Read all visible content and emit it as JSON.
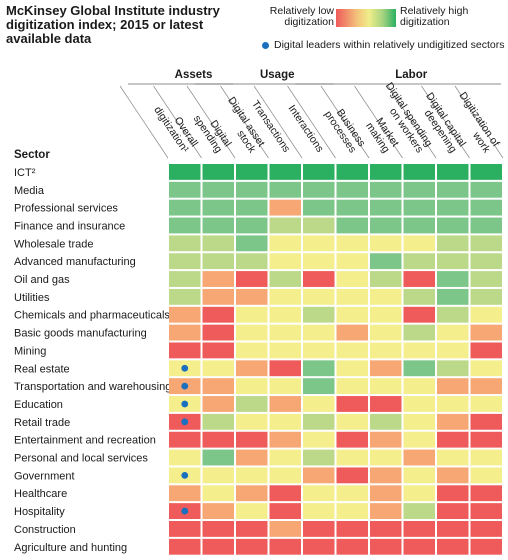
{
  "title": "McKinsey Global Institute industry digitization index; 2015 or latest available data",
  "legend": {
    "low_label": "Relatively low digitization",
    "high_label": "Relatively high digitization",
    "dot_label": "Digital leaders within relatively undigitized sectors",
    "dot_color": "#1a6fbf",
    "scale_colors": [
      "#ef5a5a",
      "#f7a774",
      "#f4ee8c",
      "#bcd98a",
      "#7cc68a",
      "#2bb062"
    ]
  },
  "chart_data": {
    "type": "heatmap",
    "title": "McKinsey Global Institute industry digitization index; 2015 or latest available data",
    "row_header": "Sector",
    "groups": [
      {
        "label": "Assets",
        "columns": [
          1,
          2
        ]
      },
      {
        "label": "Usage",
        "columns": [
          3,
          4,
          5
        ]
      },
      {
        "label": "Labor",
        "columns": [
          6,
          7,
          8,
          9,
          10
        ]
      }
    ],
    "columns": [
      "Overall digitization¹",
      "Digital spending",
      "Digital asset stock",
      "Transactions",
      "Interactions",
      "Business processes",
      "Market making",
      "Digital spending on workers",
      "Digital capital deepening",
      "Digitization of work"
    ],
    "scale": {
      "min": 0,
      "max": 5,
      "low_label": "Relatively low digitization",
      "high_label": "Relatively high digitization"
    },
    "rows": [
      {
        "sector": "ICT²",
        "leader": false,
        "values": [
          5,
          5,
          5,
          5,
          5,
          5,
          5,
          5,
          5,
          5
        ]
      },
      {
        "sector": "Media",
        "leader": false,
        "values": [
          4,
          4,
          4,
          4,
          4,
          4,
          4,
          4,
          4,
          4
        ]
      },
      {
        "sector": "Professional services",
        "leader": false,
        "values": [
          4,
          4,
          4,
          1,
          4,
          4,
          4,
          4,
          4,
          4
        ]
      },
      {
        "sector": "Finance and insurance",
        "leader": false,
        "values": [
          4,
          4,
          4,
          3,
          3,
          4,
          4,
          4,
          4,
          4
        ]
      },
      {
        "sector": "Wholesale trade",
        "leader": false,
        "values": [
          3,
          3,
          4,
          2,
          2,
          2,
          2,
          2,
          3,
          3
        ]
      },
      {
        "sector": "Advanced manufacturing",
        "leader": false,
        "values": [
          3,
          3,
          3,
          2,
          2,
          2,
          4,
          3,
          3,
          3
        ]
      },
      {
        "sector": "Oil and gas",
        "leader": false,
        "values": [
          3,
          1,
          0,
          3,
          0,
          2,
          3,
          0,
          4,
          3
        ]
      },
      {
        "sector": "Utilities",
        "leader": false,
        "values": [
          3,
          1,
          1,
          2,
          2,
          2,
          2,
          3,
          4,
          3
        ]
      },
      {
        "sector": "Chemicals and pharmaceuticals",
        "leader": false,
        "values": [
          1,
          0,
          2,
          2,
          3,
          2,
          2,
          0,
          3,
          2
        ]
      },
      {
        "sector": "Basic goods manufacturing",
        "leader": false,
        "values": [
          1,
          0,
          2,
          2,
          2,
          1,
          2,
          3,
          2,
          1
        ]
      },
      {
        "sector": "Mining",
        "leader": false,
        "values": [
          0,
          0,
          2,
          2,
          2,
          2,
          2,
          2,
          2,
          0
        ]
      },
      {
        "sector": "Real estate",
        "leader": true,
        "values": [
          2,
          2,
          1,
          0,
          4,
          2,
          1,
          4,
          3,
          2
        ]
      },
      {
        "sector": "Transportation and warehousing",
        "leader": true,
        "values": [
          1,
          1,
          2,
          2,
          4,
          2,
          2,
          2,
          1,
          1
        ]
      },
      {
        "sector": "Education",
        "leader": true,
        "values": [
          2,
          1,
          3,
          1,
          2,
          0,
          0,
          2,
          2,
          2
        ]
      },
      {
        "sector": "Retail trade",
        "leader": true,
        "values": [
          0,
          3,
          2,
          2,
          3,
          2,
          3,
          2,
          1,
          0
        ]
      },
      {
        "sector": "Entertainment and recreation",
        "leader": false,
        "values": [
          0,
          0,
          0,
          1,
          2,
          0,
          1,
          2,
          0,
          0
        ]
      },
      {
        "sector": "Personal and local services",
        "leader": false,
        "values": [
          2,
          4,
          1,
          2,
          3,
          2,
          2,
          1,
          2,
          2
        ]
      },
      {
        "sector": "Government",
        "leader": true,
        "values": [
          2,
          2,
          2,
          2,
          1,
          0,
          1,
          2,
          1,
          2
        ]
      },
      {
        "sector": "Healthcare",
        "leader": false,
        "values": [
          1,
          2,
          1,
          0,
          2,
          2,
          1,
          2,
          0,
          0
        ]
      },
      {
        "sector": "Hospitality",
        "leader": true,
        "values": [
          0,
          1,
          2,
          0,
          2,
          2,
          1,
          3,
          0,
          0
        ]
      },
      {
        "sector": "Construction",
        "leader": false,
        "values": [
          0,
          0,
          0,
          1,
          0,
          0,
          0,
          0,
          0,
          0
        ]
      },
      {
        "sector": "Agriculture and hunting",
        "leader": false,
        "values": [
          0,
          0,
          0,
          0,
          0,
          0,
          0,
          0,
          0,
          0
        ]
      }
    ]
  }
}
